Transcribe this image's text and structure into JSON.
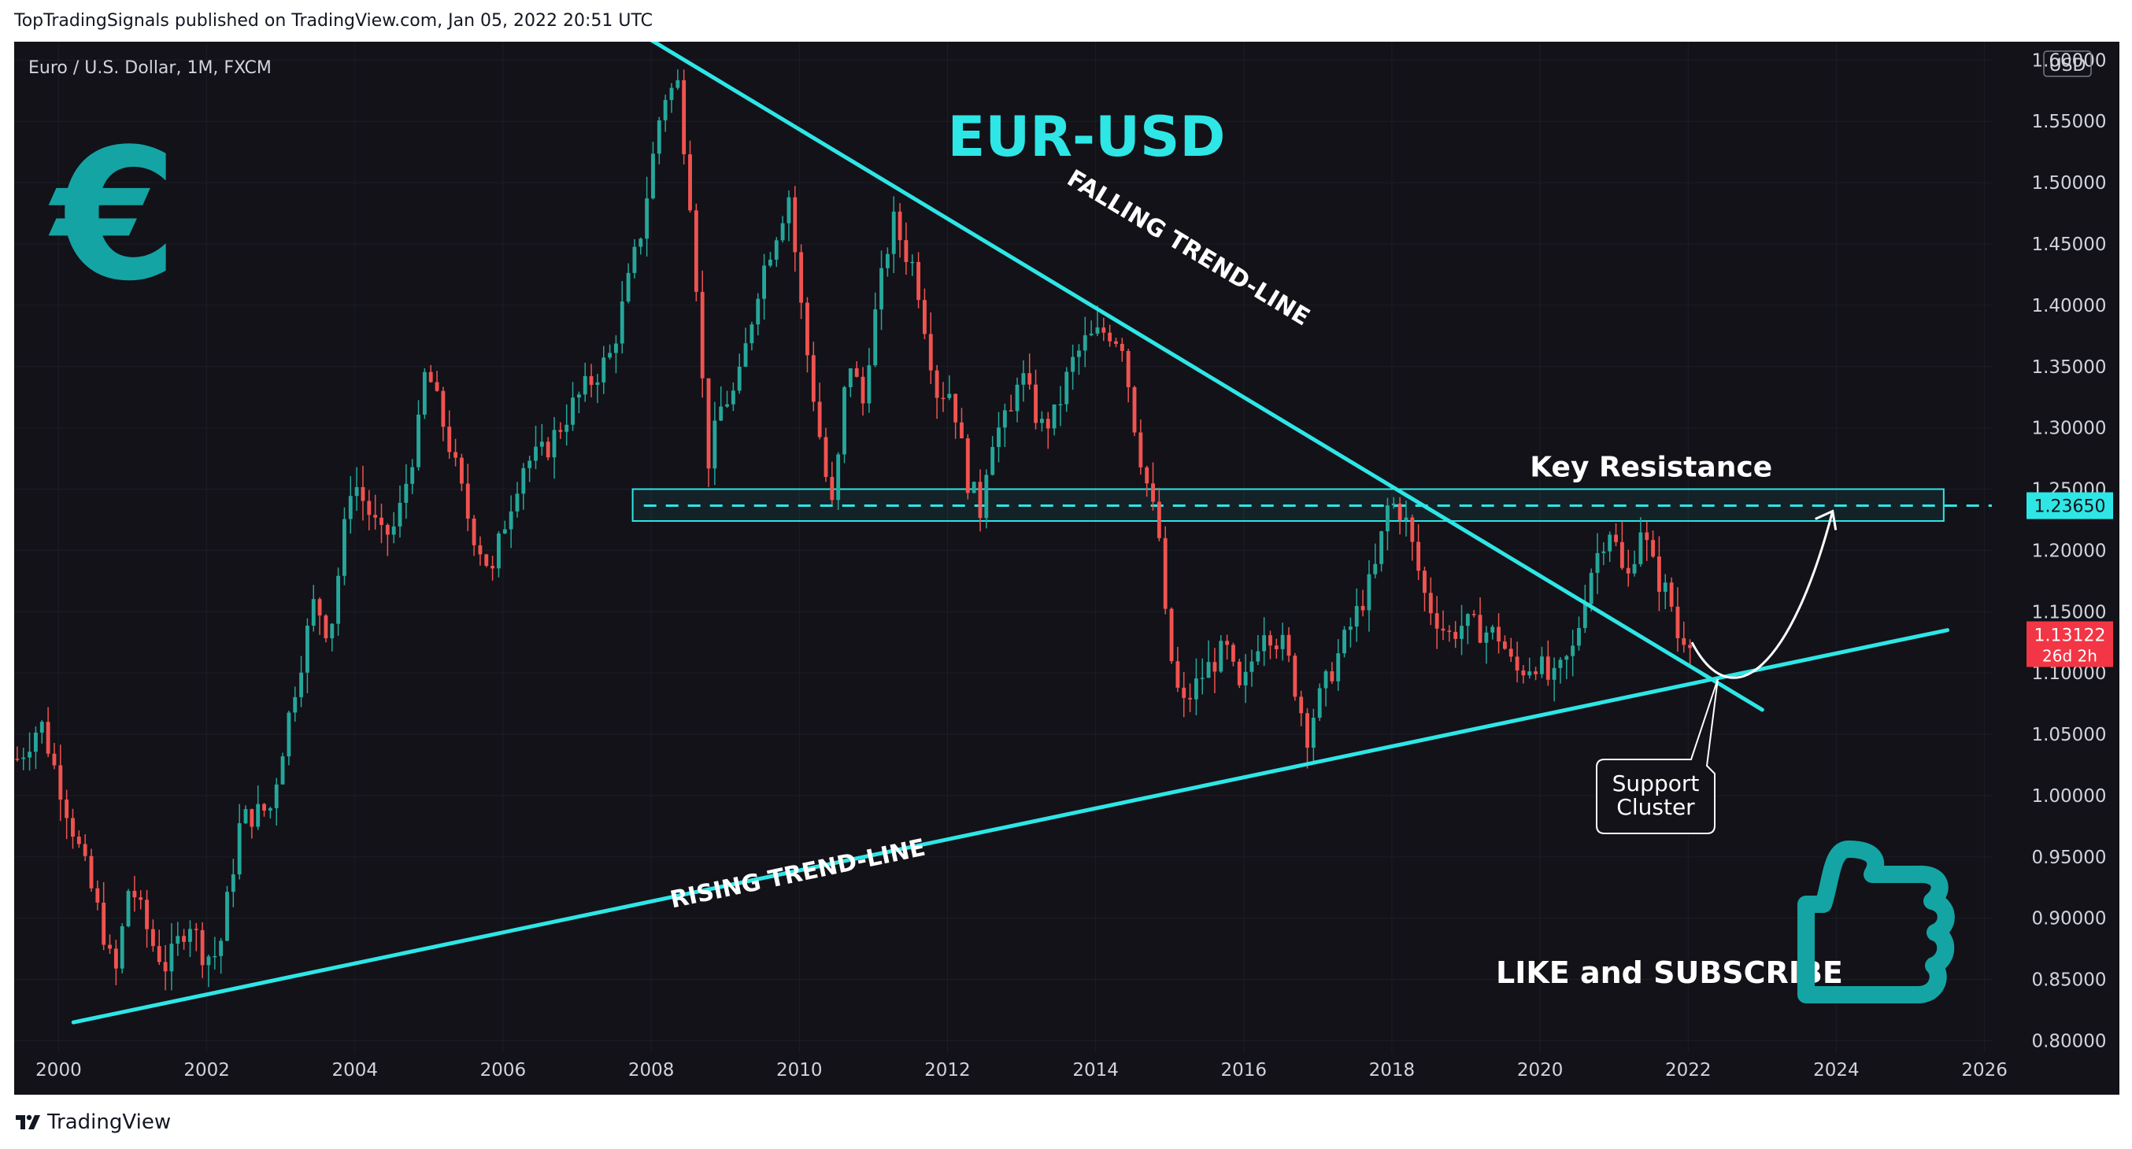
{
  "header": "TopTradingSignals published on TradingView.com, Jan 05, 2022 20:51 UTC",
  "footer": {
    "brand": "TradingView"
  },
  "symbol_info": "Euro / U.S. Dollar, 1M, FXCM",
  "currency": "USD",
  "colors": {
    "background": "#121218",
    "bull": "#26a69a",
    "bear": "#ef5350",
    "annotation": "#2ee6e6",
    "euro_sign": "#14a4a4",
    "price_tag": "#f23645",
    "grid": "#1c1e26"
  },
  "annotations": {
    "title": "EUR-USD",
    "euro_sign": "€",
    "falling": "FALLING TREND-LINE",
    "rising": "RISING TREND-LINE",
    "key_resistance": "Key Resistance",
    "support": "Support",
    "cluster": "Cluster",
    "like": "LIKE and SUBSCRIBE",
    "thumb_icon": "thumbs-up-icon"
  },
  "chart_data": {
    "type": "candlestick",
    "title": "Euro / U.S. Dollar, 1M, FXCM",
    "x_ticks": [
      "2000",
      "2002",
      "2004",
      "2006",
      "2008",
      "2010",
      "2012",
      "2014",
      "2016",
      "2018",
      "2020",
      "2022",
      "2024",
      "2026"
    ],
    "xlim": [
      1999.4,
      2026.1
    ],
    "y_ticks": [
      "1.60000",
      "1.55000",
      "1.50000",
      "1.45000",
      "1.40000",
      "1.35000",
      "1.30000",
      "1.25000",
      "1.20000",
      "1.15000",
      "1.10000",
      "1.05000",
      "1.00000",
      "0.95000",
      "0.90000",
      "0.85000",
      "0.80000"
    ],
    "ylim": [
      0.79,
      1.615
    ],
    "price_tags": [
      {
        "label": "1.23650",
        "value": 1.2365,
        "kind": "resistance"
      },
      {
        "label": "1.13122",
        "sub": "26d 2h",
        "value": 1.13122,
        "kind": "last"
      }
    ],
    "key_resistance_zone": [
      1.224,
      1.25
    ],
    "key_resistance_level": 1.2365,
    "falling_trend_line": [
      [
        2007.9,
        1.62
      ],
      [
        2023.0,
        1.07
      ]
    ],
    "rising_trend_line": [
      [
        2000.2,
        0.815
      ],
      [
        2025.5,
        1.135
      ]
    ],
    "projected_path": [
      [
        2022.05,
        1.125
      ],
      [
        2022.6,
        1.1
      ],
      [
        2023.4,
        1.15
      ],
      [
        2023.95,
        1.232
      ]
    ],
    "support_cluster_point": [
      2022.4,
      1.095
    ],
    "anchors": [
      [
        1999.5,
        1.03
      ],
      [
        1999.8,
        1.06
      ],
      [
        2000.0,
        1.02
      ],
      [
        2000.3,
        0.96
      ],
      [
        2000.6,
        0.9
      ],
      [
        2000.8,
        0.85
      ],
      [
        2001.0,
        0.93
      ],
      [
        2001.3,
        0.88
      ],
      [
        2001.5,
        0.86
      ],
      [
        2001.8,
        0.9
      ],
      [
        2002.0,
        0.87
      ],
      [
        2002.2,
        0.87
      ],
      [
        2002.5,
        0.98
      ],
      [
        2002.9,
        0.99
      ],
      [
        2003.2,
        1.08
      ],
      [
        2003.5,
        1.16
      ],
      [
        2003.7,
        1.13
      ],
      [
        2004.0,
        1.26
      ],
      [
        2004.4,
        1.21
      ],
      [
        2004.6,
        1.22
      ],
      [
        2004.9,
        1.3
      ],
      [
        2005.0,
        1.35
      ],
      [
        2005.3,
        1.29
      ],
      [
        2005.6,
        1.22
      ],
      [
        2005.9,
        1.18
      ],
      [
        2006.0,
        1.21
      ],
      [
        2006.3,
        1.27
      ],
      [
        2006.6,
        1.28
      ],
      [
        2007.0,
        1.32
      ],
      [
        2007.5,
        1.36
      ],
      [
        2007.9,
        1.46
      ],
      [
        2008.2,
        1.57
      ],
      [
        2008.4,
        1.58
      ],
      [
        2008.6,
        1.47
      ],
      [
        2008.8,
        1.27
      ],
      [
        2009.0,
        1.32
      ],
      [
        2009.2,
        1.33
      ],
      [
        2009.5,
        1.42
      ],
      [
        2009.9,
        1.49
      ],
      [
        2010.1,
        1.38
      ],
      [
        2010.4,
        1.26
      ],
      [
        2010.5,
        1.23
      ],
      [
        2010.7,
        1.36
      ],
      [
        2010.9,
        1.32
      ],
      [
        2011.0,
        1.37
      ],
      [
        2011.3,
        1.47
      ],
      [
        2011.5,
        1.44
      ],
      [
        2011.6,
        1.43
      ],
      [
        2011.9,
        1.33
      ],
      [
        2012.1,
        1.33
      ],
      [
        2012.3,
        1.26
      ],
      [
        2012.5,
        1.23
      ],
      [
        2012.6,
        1.29
      ],
      [
        2012.9,
        1.31
      ],
      [
        2013.0,
        1.35
      ],
      [
        2013.3,
        1.3
      ],
      [
        2013.5,
        1.31
      ],
      [
        2013.7,
        1.35
      ],
      [
        2013.9,
        1.37
      ],
      [
        2014.2,
        1.38
      ],
      [
        2014.4,
        1.37
      ],
      [
        2014.6,
        1.29
      ],
      [
        2014.9,
        1.21
      ],
      [
        2015.0,
        1.13
      ],
      [
        2015.2,
        1.07
      ],
      [
        2015.5,
        1.1
      ],
      [
        2015.8,
        1.12
      ],
      [
        2016.0,
        1.08
      ],
      [
        2016.3,
        1.14
      ],
      [
        2016.6,
        1.12
      ],
      [
        2016.9,
        1.05
      ],
      [
        2017.0,
        1.07
      ],
      [
        2017.5,
        1.14
      ],
      [
        2017.8,
        1.18
      ],
      [
        2018.0,
        1.24
      ],
      [
        2018.2,
        1.23
      ],
      [
        2018.5,
        1.16
      ],
      [
        2018.8,
        1.13
      ],
      [
        2019.0,
        1.14
      ],
      [
        2019.5,
        1.13
      ],
      [
        2019.7,
        1.1
      ],
      [
        2020.0,
        1.11
      ],
      [
        2020.2,
        1.09
      ],
      [
        2020.5,
        1.12
      ],
      [
        2020.7,
        1.18
      ],
      [
        2020.9,
        1.21
      ],
      [
        2021.0,
        1.22
      ],
      [
        2021.2,
        1.17
      ],
      [
        2021.4,
        1.22
      ],
      [
        2021.6,
        1.18
      ],
      [
        2021.8,
        1.16
      ],
      [
        2021.9,
        1.13
      ],
      [
        2022.0,
        1.131
      ]
    ]
  }
}
